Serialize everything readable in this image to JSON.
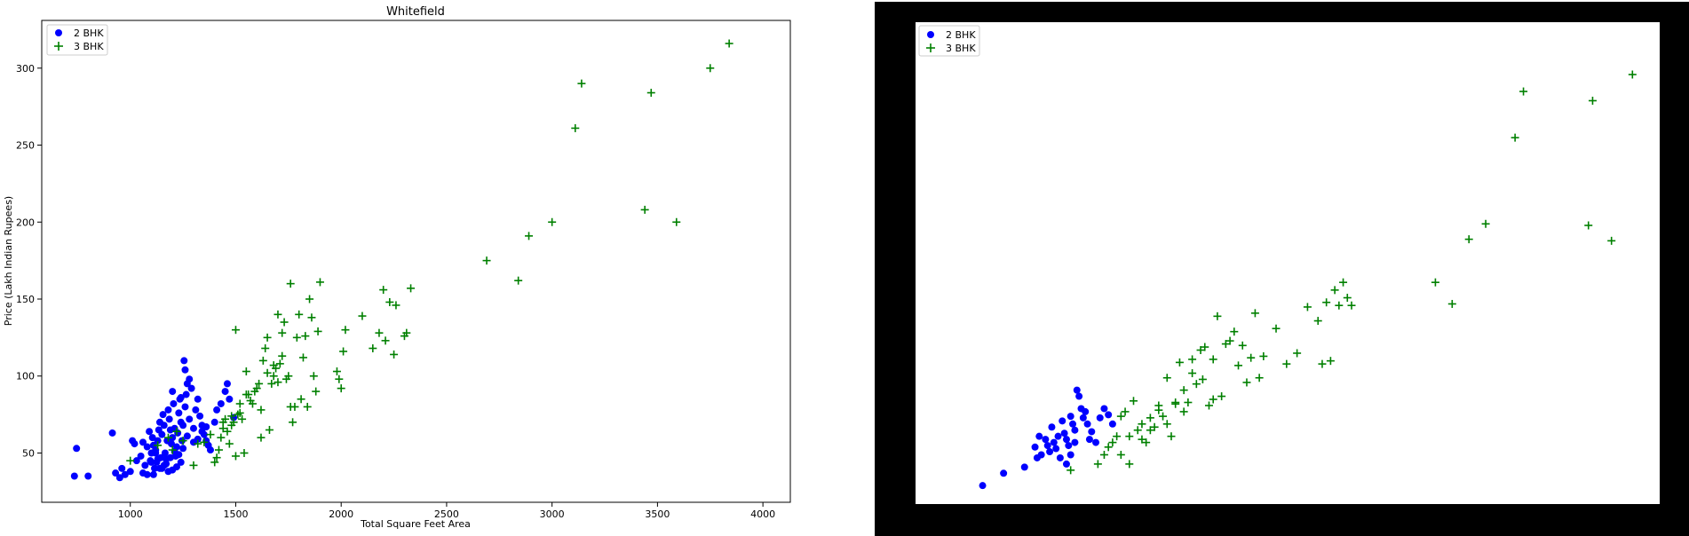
{
  "colors": {
    "series_2bhk": "#0000ff",
    "series_3bhk": "#008000",
    "right_border": "#000000",
    "axis": "#000000",
    "legend_border": "#cccccc"
  },
  "chart_data": [
    {
      "type": "scatter",
      "title": "Whitefield",
      "xlabel": "Total Square Feet Area",
      "ylabel": "Price (Lakh Indian Rupees)",
      "xlim": [
        580,
        4130
      ],
      "ylim": [
        18,
        331
      ],
      "xticks": [
        "1000",
        "1500",
        "2000",
        "2500",
        "3000",
        "3500",
        "4000"
      ],
      "yticks": [
        "50",
        "100",
        "150",
        "200",
        "250",
        "300"
      ],
      "legend_position": "top-left",
      "series": [
        {
          "name": "2 BHK",
          "marker": "circle",
          "x": [
            735,
            745,
            800,
            915,
            930,
            950,
            960,
            975,
            1000,
            1010,
            1020,
            1030,
            1050,
            1060,
            1070,
            1080,
            1090,
            1095,
            1100,
            1105,
            1110,
            1115,
            1120,
            1125,
            1130,
            1135,
            1140,
            1145,
            1150,
            1155,
            1160,
            1165,
            1170,
            1175,
            1180,
            1185,
            1190,
            1195,
            1200,
            1205,
            1210,
            1215,
            1220,
            1225,
            1230,
            1235,
            1240,
            1245,
            1250,
            1255,
            1260,
            1265,
            1270,
            1280,
            1290,
            1300,
            1310,
            1320,
            1330,
            1340,
            1350,
            1360,
            1370,
            1380,
            1400,
            1410,
            1430,
            1450,
            1460,
            1470,
            1490,
            1150,
            1160,
            1180,
            1200,
            1220,
            1240,
            1110,
            1130,
            1170,
            1190,
            1210,
            1230,
            1250,
            1270,
            1300,
            1320,
            1340,
            1360,
            1280,
            1260,
            1100,
            1140,
            1060,
            1080,
            1120,
            1200,
            1240
          ],
          "y": [
            35,
            53,
            35,
            63,
            37,
            34,
            40,
            36,
            38,
            58,
            56,
            45,
            48,
            57,
            42,
            54,
            64,
            45,
            50,
            60,
            55,
            40,
            52,
            44,
            58,
            65,
            70,
            47,
            62,
            75,
            68,
            50,
            46,
            58,
            78,
            72,
            65,
            56,
            60,
            82,
            66,
            48,
            54,
            63,
            76,
            85,
            70,
            58,
            68,
            110,
            80,
            88,
            95,
            72,
            92,
            66,
            78,
            85,
            74,
            68,
            62,
            58,
            55,
            52,
            70,
            78,
            82,
            90,
            95,
            85,
            73,
            40,
            42,
            38,
            39,
            41,
            44,
            36,
            46,
            43,
            47,
            51,
            49,
            53,
            61,
            57,
            59,
            64,
            67,
            98,
            104,
            44,
            40,
            37,
            36,
            50,
            90,
            86
          ]
        },
        {
          "name": "3 BHK",
          "marker": "plus",
          "x": [
            1000,
            1130,
            1180,
            1200,
            1220,
            1250,
            1300,
            1320,
            1350,
            1380,
            1400,
            1410,
            1420,
            1430,
            1440,
            1450,
            1460,
            1470,
            1480,
            1490,
            1500,
            1510,
            1520,
            1530,
            1540,
            1550,
            1560,
            1570,
            1580,
            1590,
            1600,
            1610,
            1620,
            1630,
            1640,
            1650,
            1660,
            1670,
            1680,
            1690,
            1700,
            1710,
            1720,
            1730,
            1740,
            1750,
            1760,
            1770,
            1780,
            1790,
            1800,
            1810,
            1820,
            1830,
            1840,
            1850,
            1860,
            1870,
            1880,
            1890,
            1900,
            1980,
            1990,
            2000,
            2010,
            2020,
            2100,
            2150,
            2180,
            2200,
            2210,
            2230,
            2250,
            2260,
            2300,
            2310,
            2330,
            2690,
            2840,
            2890,
            3000,
            3110,
            3140,
            3440,
            3470,
            3590,
            3750,
            3840,
            1500,
            1620,
            1680,
            1720,
            1760,
            1550,
            1480,
            1440,
            1520,
            1650,
            1700
          ],
          "y": [
            45,
            55,
            60,
            52,
            64,
            58,
            42,
            56,
            57,
            62,
            44,
            47,
            52,
            60,
            66,
            72,
            64,
            56,
            68,
            70,
            130,
            75,
            76,
            72,
            50,
            103,
            88,
            84,
            82,
            90,
            92,
            95,
            60,
            110,
            118,
            125,
            65,
            95,
            100,
            105,
            140,
            108,
            128,
            135,
            98,
            100,
            160,
            70,
            80,
            125,
            140,
            85,
            112,
            126,
            80,
            150,
            138,
            100,
            90,
            129,
            161,
            103,
            98,
            92,
            116,
            130,
            139,
            118,
            128,
            156,
            123,
            148,
            114,
            146,
            126,
            128,
            157,
            175,
            162,
            191,
            200,
            261,
            290,
            208,
            284,
            200,
            300,
            316,
            48,
            78,
            107,
            113,
            80,
            88,
            74,
            70,
            82,
            102,
            96
          ]
        }
      ]
    },
    {
      "type": "scatter",
      "title": "",
      "xlabel": "",
      "ylabel": "",
      "xlim": [
        580,
        4130
      ],
      "ylim": [
        18,
        331
      ],
      "legend_position": "top-left",
      "axes_visible": false,
      "series": [
        {
          "name": "2 BHK",
          "marker": "circle",
          "x": [
            900,
            1000,
            1100,
            1150,
            1160,
            1170,
            1180,
            1200,
            1210,
            1220,
            1230,
            1240,
            1250,
            1260,
            1270,
            1280,
            1290,
            1300,
            1310,
            1320,
            1330,
            1340,
            1350,
            1360,
            1370,
            1380,
            1390,
            1400,
            1410,
            1420,
            1440,
            1460,
            1480,
            1500,
            1520,
            1300,
            1320,
            1340
          ],
          "y": [
            30,
            38,
            42,
            55,
            48,
            62,
            50,
            60,
            56,
            52,
            68,
            58,
            54,
            62,
            48,
            72,
            64,
            60,
            56,
            75,
            70,
            66,
            92,
            88,
            80,
            74,
            78,
            70,
            60,
            65,
            58,
            74,
            80,
            76,
            70,
            44,
            50,
            58
          ]
        },
        {
          "name": "3 BHK",
          "marker": "plus",
          "x": [
            1320,
            1450,
            1480,
            1500,
            1520,
            1540,
            1560,
            1580,
            1600,
            1620,
            1640,
            1660,
            1680,
            1700,
            1720,
            1740,
            1760,
            1780,
            1800,
            1820,
            1840,
            1860,
            1880,
            1900,
            1920,
            1940,
            1960,
            1980,
            2000,
            2020,
            2040,
            2060,
            2080,
            2100,
            2120,
            2140,
            2160,
            2180,
            2200,
            2220,
            2240,
            2300,
            2350,
            2400,
            2450,
            2500,
            2520,
            2540,
            2560,
            2580,
            2600,
            2620,
            2640,
            2660,
            3060,
            3140,
            3220,
            3300,
            3440,
            3480,
            3790,
            3810,
            3900,
            4000,
            1600,
            1660,
            1700,
            1740,
            1560,
            1780,
            1820,
            1860,
            1900,
            1950,
            2000
          ],
          "y": [
            40,
            44,
            50,
            55,
            58,
            62,
            75,
            78,
            62,
            85,
            66,
            70,
            58,
            74,
            68,
            82,
            75,
            100,
            62,
            84,
            110,
            78,
            84,
            112,
            96,
            118,
            120,
            82,
            112,
            140,
            88,
            122,
            124,
            130,
            108,
            121,
            97,
            113,
            142,
            100,
            114,
            132,
            109,
            116,
            146,
            137,
            109,
            149,
            111,
            157,
            147,
            162,
            152,
            147,
            162,
            148,
            190,
            200,
            256,
            286,
            199,
            280,
            189,
            297,
            44,
            60,
            66,
            79,
            50,
            70,
            83,
            92,
            103,
            99,
            86
          ]
        }
      ]
    }
  ]
}
